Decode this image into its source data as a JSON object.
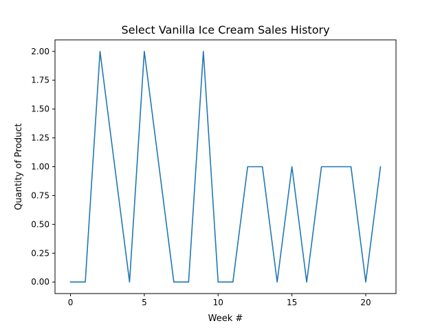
{
  "chart_data": {
    "type": "line",
    "title": "Select Vanilla Ice Cream Sales History",
    "xlabel": "Week #",
    "ylabel": "Quantity of Product",
    "xlim": [
      -1.05,
      22.05
    ],
    "ylim": [
      -0.1,
      2.1
    ],
    "x_ticks": [
      "0",
      "5",
      "10",
      "15",
      "20"
    ],
    "y_ticks": [
      "0.00",
      "0.25",
      "0.50",
      "0.75",
      "1.00",
      "1.25",
      "1.50",
      "1.75",
      "2.00"
    ],
    "grid": false,
    "line_color": "#1f77b4",
    "x": [
      0,
      1,
      2,
      3,
      4,
      5,
      6,
      7,
      8,
      9,
      10,
      11,
      12,
      13,
      14,
      15,
      16,
      17,
      18,
      19,
      20,
      21
    ],
    "y": [
      0,
      0,
      2,
      1,
      0,
      2,
      1,
      0,
      0,
      2,
      0,
      0,
      1,
      1,
      0,
      1,
      0,
      1,
      1,
      1,
      0,
      1
    ]
  }
}
